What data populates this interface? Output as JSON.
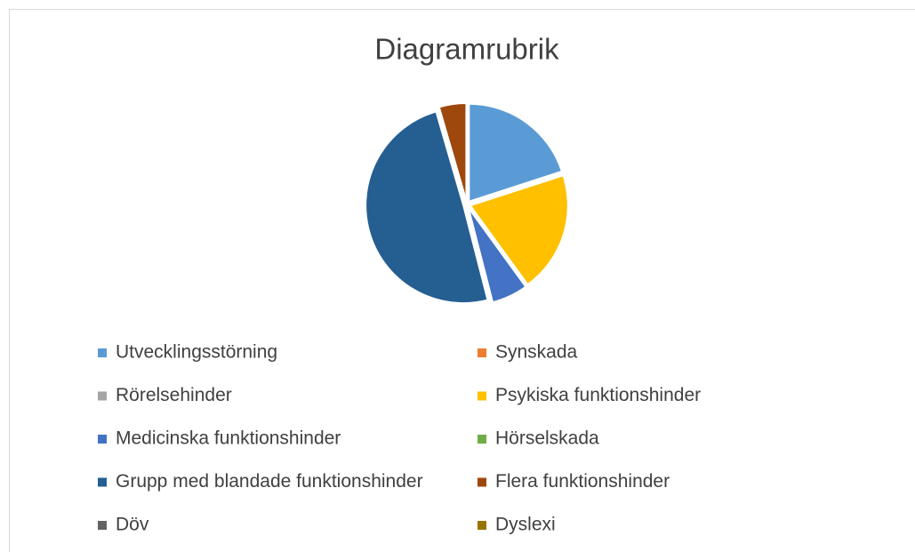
{
  "chart_data": {
    "type": "pie",
    "title": "Diagramrubrik",
    "categories": [
      "Utvecklingsstörning",
      "Synskada",
      "Rörelsehinder",
      "Psykiska funktionshinder",
      "Medicinska funktionshinder",
      "Hörselskada",
      "Grupp med blandade funktionshinder",
      "Flera funktionshinder",
      "Döv",
      "Dyslexi"
    ],
    "values": [
      20,
      0,
      0,
      20,
      6,
      0,
      49.5,
      4.5,
      0,
      0
    ],
    "colors": [
      "#5b9bd5",
      "#ed7d31",
      "#a5a5a5",
      "#ffc000",
      "#4472c4",
      "#70ad47",
      "#255e91",
      "#9e480e",
      "#636363",
      "#997300"
    ],
    "legend": "bottom"
  }
}
